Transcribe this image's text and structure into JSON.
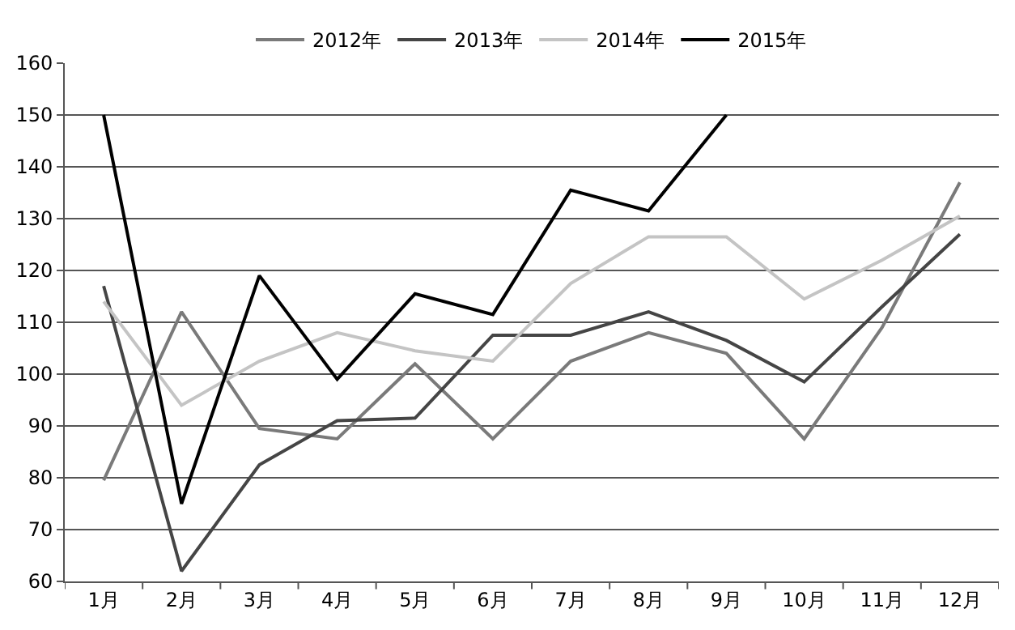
{
  "chart_data": {
    "type": "line",
    "categories": [
      "1月",
      "2月",
      "3月",
      "4月",
      "5月",
      "6月",
      "7月",
      "8月",
      "9月",
      "10月",
      "11月",
      "12月"
    ],
    "series": [
      {
        "name": "2012年",
        "color": "#7a7a7a",
        "values": [
          79.5,
          112,
          89.5,
          87.5,
          102,
          87.5,
          102.5,
          108,
          104,
          87.5,
          109,
          137
        ]
      },
      {
        "name": "2013年",
        "color": "#454545",
        "values": [
          117,
          62,
          82.5,
          91,
          91.5,
          107.5,
          107.5,
          112,
          106.5,
          98.5,
          113,
          127
        ]
      },
      {
        "name": "2014年",
        "color": "#c4c4c4",
        "values": [
          114,
          94,
          102.5,
          108,
          104.5,
          102.5,
          117.5,
          126.5,
          126.5,
          114.5,
          122,
          130.5
        ]
      },
      {
        "name": "2015年",
        "color": "#000000",
        "values": [
          150,
          75,
          119,
          99,
          115.5,
          111.5,
          135.5,
          131.5,
          150,
          null,
          null,
          null
        ]
      }
    ],
    "ylim": [
      60,
      160
    ],
    "yticks": [
      60,
      70,
      80,
      90,
      100,
      110,
      120,
      130,
      140,
      150,
      160
    ],
    "grid": "y",
    "legend": "top",
    "marker": "none",
    "line_style": "solid"
  }
}
